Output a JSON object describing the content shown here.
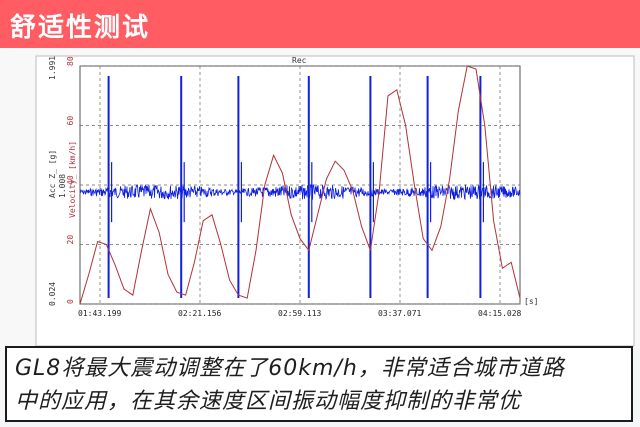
{
  "header": {
    "title": "舒适性测试"
  },
  "chart": {
    "top_label": "Rec",
    "left_axis_top": "1.991",
    "left_axis_bottom": "0.024",
    "left_axis_name": "Acc Z_ [g]",
    "left_axis_name2": "1.008",
    "right_axis_name": "Velocity_ [km/h]",
    "unit_label": "[s]",
    "accent_blue": "#1020e0",
    "accent_red": "#b0323a"
  },
  "chart_data": {
    "type": "line",
    "x_ticks": [
      "01:43.199",
      "02:21.156",
      "02:59.113",
      "03:37.071",
      "04:15.028"
    ],
    "y_right_ticks": [
      "80",
      "60",
      "40",
      "20",
      "0"
    ],
    "ylim": [
      0,
      80
    ],
    "series": [
      {
        "name": "Velocity_",
        "x": [
          0,
          2,
          4,
          6,
          8,
          10,
          12,
          14,
          16,
          18,
          20,
          22,
          24,
          26,
          28,
          30,
          32,
          34,
          36,
          38,
          40,
          42,
          44,
          46,
          48,
          50,
          52,
          54,
          56,
          58,
          60,
          62,
          64,
          66,
          68,
          70,
          72,
          74,
          76,
          78,
          80,
          82,
          84,
          86,
          88,
          90,
          92,
          94,
          96,
          98,
          100
        ],
        "y": [
          0,
          10,
          21,
          20,
          13,
          5,
          3,
          18,
          32,
          24,
          10,
          4,
          3,
          14,
          28,
          30,
          20,
          8,
          3,
          2,
          18,
          40,
          50,
          44,
          30,
          22,
          18,
          30,
          42,
          48,
          45,
          38,
          26,
          18,
          38,
          70,
          72,
          60,
          40,
          22,
          18,
          26,
          42,
          65,
          80,
          79,
          60,
          28,
          12,
          14,
          2
        ]
      }
    ],
    "spike_positions": [
      0.065,
      0.23,
      0.36,
      0.52,
      0.66,
      0.79,
      0.91
    ],
    "spike_heights": [
      1.991,
      1.991,
      1.991,
      1.991,
      1.991,
      1.991,
      1.991
    ]
  },
  "caption": {
    "line1": "GL8将最大震动调整在了60km/h，非常适合城市道路",
    "line2": "中的应用，在其余速度区间振动幅度抑制的非常优"
  }
}
